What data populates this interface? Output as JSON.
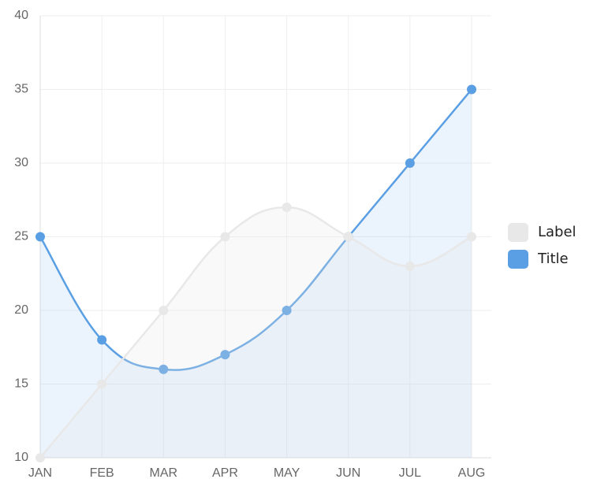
{
  "chart_data": {
    "type": "line",
    "categories": [
      "JAN",
      "FEB",
      "MAR",
      "APR",
      "MAY",
      "JUN",
      "JUL",
      "AUG"
    ],
    "series": [
      {
        "name": "Label",
        "color": "#e8e8e8",
        "values": [
          10,
          15,
          20,
          25,
          27,
          25,
          23,
          25
        ]
      },
      {
        "name": "Title",
        "color": "#5a9fe3",
        "values": [
          25,
          18,
          16,
          17,
          20,
          25,
          30,
          35
        ]
      }
    ],
    "ylim": [
      10,
      40
    ],
    "yticks": [
      10,
      15,
      20,
      25,
      30,
      35,
      40
    ],
    "grid": true,
    "legend": "right",
    "fill": true
  }
}
